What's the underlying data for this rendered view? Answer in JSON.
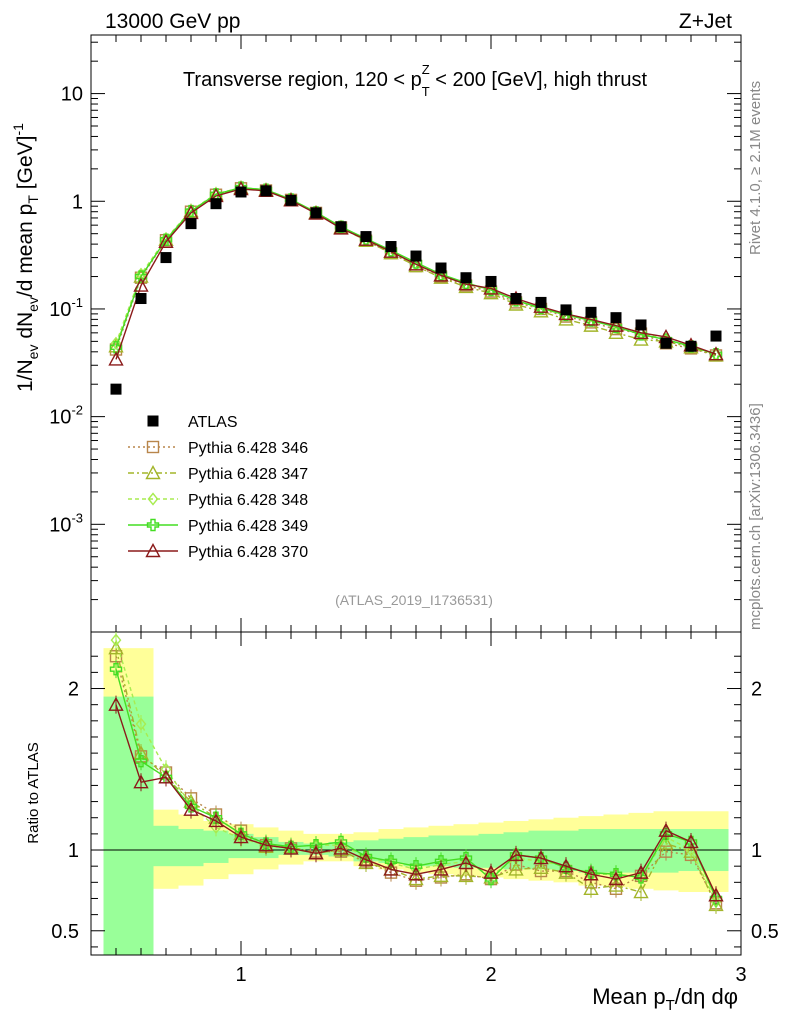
{
  "header": {
    "left": "13000 GeV pp",
    "right": "Z+Jet"
  },
  "side_labels": {
    "top": "Rivet 4.1.0, ≥ 2.1M events",
    "bottom": "mcplots.cern.ch [arXiv:1306.3436]"
  },
  "chart_data": {
    "type": "line",
    "title": "Transverse region, 120 < p_T^Z < 200 [GeV], high thrust",
    "title_parts": {
      "a": "Transverse region, 120 < p",
      "sub": "T",
      "sup": "Z",
      "b": " < 200 [GeV], high thrust"
    },
    "analysis_tag": "(ATLAS_2019_I1736531)",
    "xlabel": "Mean p_T/dη dφ",
    "xlabel_parts": {
      "a": "Mean p",
      "sub": "T",
      "b": "/dη dφ"
    },
    "ylabel": "1/N_ev dN_ev/d mean p_T [GeV]^-1",
    "ylabel_parts": {
      "a": "1/N",
      "sub1": "ev",
      "b": " dN",
      "sub2": "ev",
      "c": "/d mean p",
      "sub3": "T",
      "d": " [GeV]",
      "sup": "-1"
    },
    "ratio_ylabel": "Ratio to ATLAS",
    "xlim": [
      0.4,
      3.0
    ],
    "ylim": [
      0.0001,
      35
    ],
    "ratio_ylim": [
      0.35,
      2.35
    ],
    "yscale": "log",
    "x_ticks": [
      1,
      2,
      3
    ],
    "y_ticks": [
      {
        "a": "10",
        "sup": "-3",
        "v": 0.001
      },
      {
        "a": "10",
        "sup": "-2",
        "v": 0.01
      },
      {
        "a": "10",
        "sup": "-1",
        "v": 0.1
      },
      {
        "a": "1",
        "sup": "",
        "v": 1
      },
      {
        "a": "10",
        "sup": "",
        "v": 10
      }
    ],
    "ratio_ticks": [
      0.5,
      1,
      2
    ],
    "x": [
      0.5,
      0.6,
      0.7,
      0.8,
      0.9,
      1.0,
      1.1,
      1.2,
      1.3,
      1.4,
      1.5,
      1.6,
      1.7,
      1.8,
      1.9,
      2.0,
      2.1,
      2.2,
      2.3,
      2.4,
      2.5,
      2.6,
      2.7,
      2.8,
      2.9
    ],
    "atlas": [
      0.018,
      0.125,
      0.3,
      0.62,
      0.95,
      1.22,
      1.25,
      1.02,
      0.78,
      0.58,
      0.47,
      0.38,
      0.31,
      0.24,
      0.195,
      0.18,
      0.125,
      0.115,
      0.098,
      0.093,
      0.083,
      0.071,
      0.048,
      0.045,
      0.056
    ],
    "band_inner": [
      [
        0.35,
        1.95
      ],
      [
        0.35,
        1.95
      ],
      [
        0.9,
        1.15
      ],
      [
        0.9,
        1.13
      ],
      [
        0.92,
        1.12
      ],
      [
        0.95,
        1.1
      ],
      [
        0.95,
        1.08
      ],
      [
        0.97,
        1.05
      ],
      [
        0.97,
        1.04
      ],
      [
        0.96,
        1.05
      ],
      [
        0.93,
        1.06
      ],
      [
        0.92,
        1.07
      ],
      [
        0.9,
        1.08
      ],
      [
        0.9,
        1.09
      ],
      [
        0.89,
        1.09
      ],
      [
        0.89,
        1.1
      ],
      [
        0.88,
        1.11
      ],
      [
        0.88,
        1.12
      ],
      [
        0.87,
        1.12
      ],
      [
        0.86,
        1.13
      ],
      [
        0.86,
        1.13
      ],
      [
        0.86,
        1.13
      ],
      [
        0.86,
        1.13
      ],
      [
        0.87,
        1.13
      ],
      [
        0.87,
        1.13
      ]
    ],
    "band_outer": [
      [
        0.35,
        2.25
      ],
      [
        0.35,
        2.25
      ],
      [
        0.76,
        1.25
      ],
      [
        0.78,
        1.22
      ],
      [
        0.82,
        1.18
      ],
      [
        0.85,
        1.16
      ],
      [
        0.88,
        1.14
      ],
      [
        0.91,
        1.12
      ],
      [
        0.93,
        1.1
      ],
      [
        0.93,
        1.1
      ],
      [
        0.9,
        1.11
      ],
      [
        0.88,
        1.13
      ],
      [
        0.86,
        1.14
      ],
      [
        0.85,
        1.15
      ],
      [
        0.84,
        1.16
      ],
      [
        0.83,
        1.17
      ],
      [
        0.82,
        1.18
      ],
      [
        0.81,
        1.19
      ],
      [
        0.8,
        1.2
      ],
      [
        0.78,
        1.21
      ],
      [
        0.77,
        1.22
      ],
      [
        0.76,
        1.23
      ],
      [
        0.75,
        1.24
      ],
      [
        0.74,
        1.24
      ],
      [
        0.74,
        1.24
      ]
    ],
    "series": [
      {
        "name": "Pythia 6.428 346",
        "color": "#b8864b",
        "marker": "square",
        "dash": "2,3",
        "values": [
          0.042,
          0.195,
          0.435,
          0.8,
          1.15,
          1.32,
          1.26,
          1.03,
          0.78,
          0.57,
          0.43,
          0.33,
          0.25,
          0.2,
          0.165,
          0.145,
          0.115,
          0.1,
          0.085,
          0.075,
          0.065,
          0.059,
          0.048,
          0.043,
          0.037
        ],
        "ratio": [
          2.2,
          1.58,
          1.48,
          1.32,
          1.22,
          1.12,
          1.03,
          1.01,
          0.99,
          0.99,
          0.93,
          0.86,
          0.81,
          0.83,
          0.85,
          0.82,
          0.91,
          0.87,
          0.87,
          0.8,
          0.76,
          0.84,
          0.99,
          0.97,
          0.67
        ]
      },
      {
        "name": "Pythia 6.428 347",
        "color": "#a3b52a",
        "marker": "triangle",
        "dash": "6,3,2,3",
        "values": [
          0.045,
          0.2,
          0.44,
          0.81,
          1.16,
          1.33,
          1.27,
          1.03,
          0.78,
          0.57,
          0.43,
          0.33,
          0.25,
          0.195,
          0.16,
          0.14,
          0.11,
          0.095,
          0.08,
          0.07,
          0.06,
          0.052,
          0.05,
          0.044,
          0.037
        ],
        "ratio": [
          2.25,
          1.6,
          1.45,
          1.3,
          1.2,
          1.1,
          1.02,
          1.02,
          0.98,
          1.0,
          0.92,
          0.88,
          0.82,
          0.84,
          0.84,
          0.83,
          0.88,
          0.89,
          0.86,
          0.76,
          0.78,
          0.74,
          1.04,
          0.99,
          0.66
        ]
      },
      {
        "name": "Pythia 6.428 348",
        "color": "#a8ec50",
        "marker": "diamond",
        "dash": "4,3",
        "values": [
          0.048,
          0.21,
          0.45,
          0.82,
          1.17,
          1.34,
          1.28,
          1.04,
          0.79,
          0.58,
          0.44,
          0.34,
          0.26,
          0.205,
          0.17,
          0.15,
          0.12,
          0.1,
          0.088,
          0.078,
          0.07,
          0.06,
          0.052,
          0.045,
          0.038
        ],
        "ratio": [
          2.3,
          1.78,
          1.5,
          1.28,
          1.14,
          1.07,
          1.03,
          1.02,
          1.03,
          1.03,
          0.96,
          0.92,
          0.88,
          0.91,
          0.93,
          0.84,
          0.95,
          0.93,
          0.9,
          0.85,
          0.85,
          0.83,
          1.08,
          1.0,
          0.68
        ]
      },
      {
        "name": "Pythia 6.428 349",
        "color": "#44dd22",
        "marker": "cross",
        "dash": "",
        "values": [
          0.044,
          0.2,
          0.44,
          0.81,
          1.16,
          1.34,
          1.28,
          1.04,
          0.79,
          0.58,
          0.45,
          0.35,
          0.27,
          0.21,
          0.175,
          0.15,
          0.12,
          0.102,
          0.088,
          0.078,
          0.068,
          0.058,
          0.052,
          0.045,
          0.038
        ],
        "ratio": [
          2.12,
          1.55,
          1.45,
          1.27,
          1.2,
          1.1,
          1.04,
          1.02,
          1.03,
          1.05,
          0.96,
          0.93,
          0.9,
          0.93,
          0.95,
          0.82,
          0.97,
          0.95,
          0.89,
          0.86,
          0.85,
          0.83,
          1.1,
          1.05,
          0.7
        ]
      },
      {
        "name": "Pythia 6.428 370",
        "color": "#8b1a1a",
        "marker": "triangle",
        "dash": "",
        "values": [
          0.034,
          0.165,
          0.42,
          0.78,
          1.12,
          1.3,
          1.25,
          1.02,
          0.77,
          0.56,
          0.44,
          0.34,
          0.26,
          0.205,
          0.17,
          0.155,
          0.125,
          0.105,
          0.09,
          0.08,
          0.07,
          0.06,
          0.055,
          0.046,
          0.038
        ],
        "ratio": [
          1.9,
          1.42,
          1.45,
          1.25,
          1.18,
          1.08,
          1.03,
          1.01,
          0.98,
          1.01,
          0.94,
          0.88,
          0.85,
          0.88,
          0.92,
          0.86,
          0.97,
          0.95,
          0.9,
          0.85,
          0.82,
          0.86,
          1.12,
          1.05,
          0.72
        ]
      }
    ],
    "atlas_legend": "ATLAS"
  }
}
